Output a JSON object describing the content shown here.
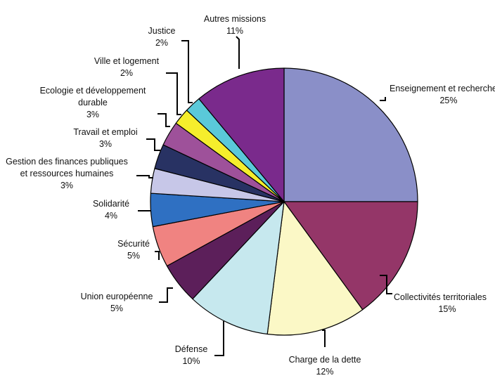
{
  "chart_data": {
    "type": "pie",
    "title": "",
    "start_angle_deg": 0,
    "direction": "clockwise",
    "slices": [
      {
        "label_lines": [
          "Enseignement et recherche"
        ],
        "pct_text": "25%",
        "value": 25,
        "color": "#8a8fc8"
      },
      {
        "label_lines": [
          "Collectivités territoriales"
        ],
        "pct_text": "15%",
        "value": 15,
        "color": "#943668"
      },
      {
        "label_lines": [
          "Charge de la dette"
        ],
        "pct_text": "12%",
        "value": 12,
        "color": "#fbf8c6"
      },
      {
        "label_lines": [
          "Défense"
        ],
        "pct_text": "10%",
        "value": 10,
        "color": "#c6e8ee"
      },
      {
        "label_lines": [
          "Union européenne"
        ],
        "pct_text": "5%",
        "value": 5,
        "color": "#5c1f5a"
      },
      {
        "label_lines": [
          "Sécurité"
        ],
        "pct_text": "5%",
        "value": 5,
        "color": "#f08381"
      },
      {
        "label_lines": [
          "Solidarité"
        ],
        "pct_text": "4%",
        "value": 4,
        "color": "#2f70c2"
      },
      {
        "label_lines": [
          "Gestion des finances publiques",
          "et ressources humaines"
        ],
        "pct_text": "3%",
        "value": 3,
        "color": "#c7c7e8"
      },
      {
        "label_lines": [
          "Travail et emploi"
        ],
        "pct_text": "3%",
        "value": 3,
        "color": "#283263"
      },
      {
        "label_lines": [
          "Ecologie et développement",
          "durable"
        ],
        "pct_text": "3%",
        "value": 3,
        "color": "#9e519a"
      },
      {
        "label_lines": [
          "Ville et logement"
        ],
        "pct_text": "2%",
        "value": 2,
        "color": "#f5ee2c"
      },
      {
        "label_lines": [
          "Justice"
        ],
        "pct_text": "2%",
        "value": 2,
        "color": "#5ac9d9"
      },
      {
        "label_lines": [
          "Autres missions"
        ],
        "pct_text": "11%",
        "value": 11,
        "color": "#7a2a8c"
      }
    ]
  }
}
